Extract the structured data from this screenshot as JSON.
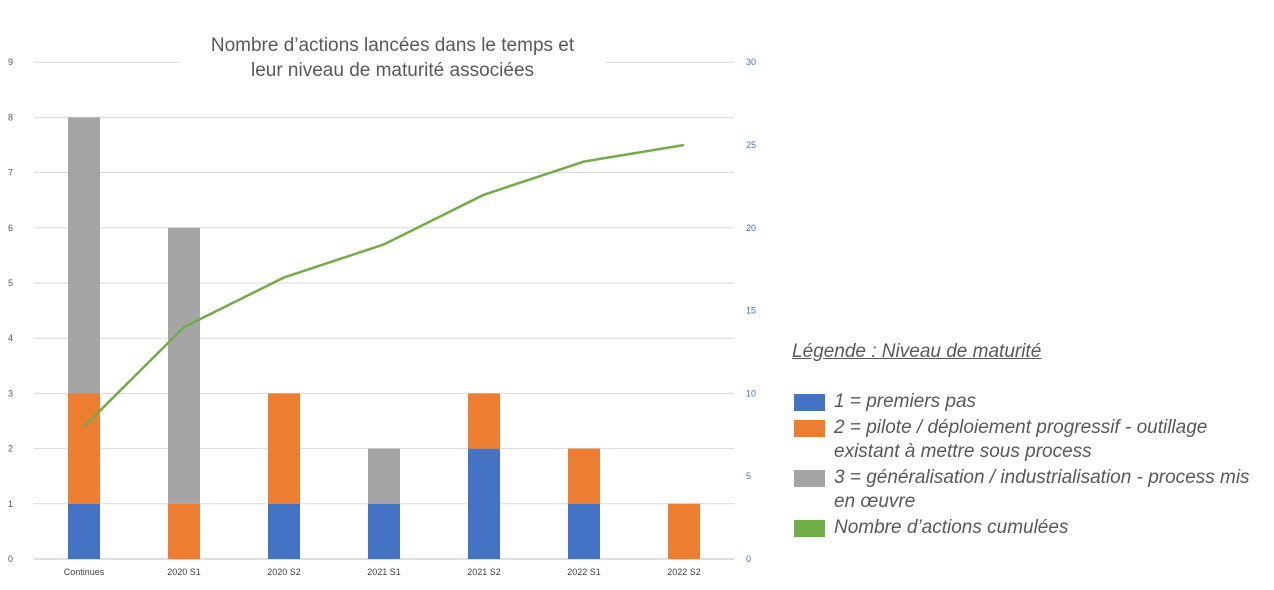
{
  "chart_data": {
    "type": "bar",
    "title_lines": [
      "Nombre d’actions lancées dans le temps et",
      "leur niveau de maturité associées"
    ],
    "categories": [
      "Continues",
      "2020 S1",
      "2020 S2",
      "2021 S1",
      "2021 S2",
      "2022 S1",
      "2022 S2"
    ],
    "series": [
      {
        "name": "1 = premiers pas",
        "color": "#4472C4",
        "values": [
          1,
          0,
          1,
          1,
          2,
          1,
          0
        ]
      },
      {
        "name": "2 = pilote / déploiement progressif - outillage existant à mettre sous process",
        "color": "#ED7D31",
        "values": [
          2,
          1,
          2,
          0,
          1,
          1,
          1
        ]
      },
      {
        "name": "3 = généralisation / industrialisation - process mis en œuvre",
        "color": "#A5A5A5",
        "values": [
          5,
          5,
          0,
          1,
          0,
          0,
          0
        ]
      }
    ],
    "line_series": {
      "name": "Nombre d’actions cumulées",
      "color": "#70AD47",
      "axis": "right",
      "values": [
        8,
        14,
        17,
        19,
        22,
        24,
        25
      ]
    },
    "y_left": {
      "min": 0,
      "max": 9,
      "ticks": [
        0,
        1,
        2,
        3,
        4,
        5,
        6,
        7,
        8,
        9
      ]
    },
    "y_right": {
      "min": 0,
      "max": 30,
      "ticks": [
        0,
        5,
        10,
        15,
        20,
        25,
        30
      ]
    },
    "stacked": true,
    "grid": true
  },
  "legend": {
    "heading_underlined": "Légende :",
    "heading_rest": " Niveau de maturité",
    "items": [
      {
        "color": "#4472C4",
        "text": "1 = premiers pas"
      },
      {
        "color": "#ED7D31",
        "text": "2 = pilote / déploiement progressif - outillage existant à mettre sous process"
      },
      {
        "color": "#A5A5A5",
        "text": "3 = généralisation / industrialisation - process mis en œuvre"
      },
      {
        "color": "#70AD47",
        "text": "Nombre d’actions cumulées"
      }
    ]
  },
  "styles": {
    "axis_text_left": "#595959",
    "axis_text_right": "#4472C4",
    "grid_color": "#D9D9D9"
  }
}
